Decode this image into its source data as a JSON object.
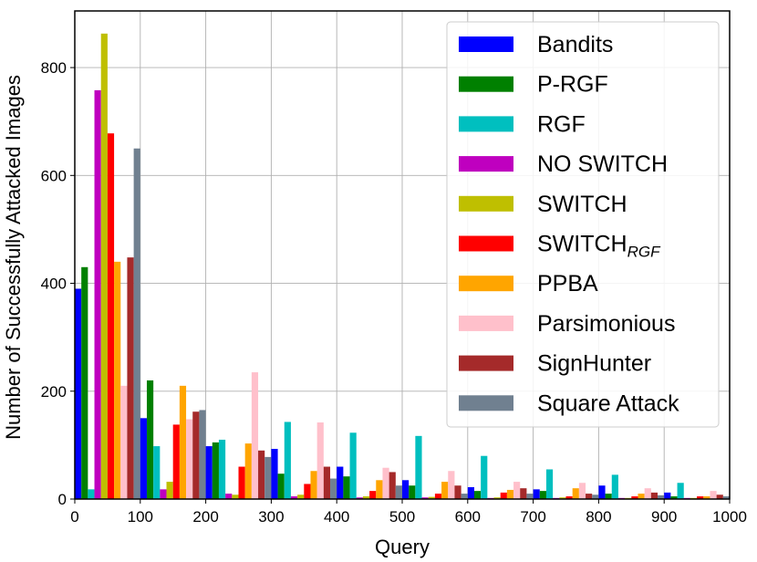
{
  "chart_data": {
    "type": "bar",
    "xlabel": "Query",
    "ylabel": "Number of Successfully Attacked Images",
    "xlim": [
      0,
      1000
    ],
    "ylim": [
      0,
      905
    ],
    "xticks": [
      0,
      100,
      200,
      300,
      400,
      500,
      600,
      700,
      800,
      900,
      1000
    ],
    "yticks": [
      0,
      200,
      400,
      600,
      800
    ],
    "grid": true,
    "legend_position": "top-right",
    "bin_starts": [
      0,
      100,
      200,
      300,
      400,
      500,
      600,
      700,
      800,
      900
    ],
    "series": [
      {
        "name": "Bandits",
        "name_sub": "",
        "color": "#0000ff",
        "values": [
          390,
          150,
          98,
          93,
          60,
          35,
          22,
          18,
          25,
          12
        ]
      },
      {
        "name": "P-RGF",
        "name_sub": "",
        "color": "#008000",
        "values": [
          430,
          220,
          105,
          47,
          42,
          25,
          15,
          15,
          10,
          5
        ]
      },
      {
        "name": "RGF",
        "name_sub": "",
        "color": "#00bfbf",
        "values": [
          18,
          98,
          110,
          143,
          123,
          117,
          80,
          55,
          45,
          30
        ]
      },
      {
        "name": "NO SWITCH",
        "name_sub": "",
        "color": "#bf00bf",
        "values": [
          758,
          18,
          10,
          5,
          3,
          3,
          2,
          2,
          2,
          2
        ]
      },
      {
        "name": "SWITCH",
        "name_sub": "",
        "color": "#bfbf00",
        "values": [
          863,
          32,
          8,
          8,
          5,
          4,
          3,
          3,
          2,
          2
        ]
      },
      {
        "name": "SWITCH",
        "name_sub": "RGF",
        "color": "#ff0000",
        "values": [
          678,
          138,
          60,
          28,
          15,
          10,
          12,
          5,
          5,
          5
        ]
      },
      {
        "name": "PPBA",
        "name_sub": "",
        "color": "#ffa500",
        "values": [
          440,
          210,
          103,
          52,
          35,
          32,
          17,
          20,
          10,
          5
        ]
      },
      {
        "name": "Parsimonious",
        "name_sub": "",
        "color": "#ffc0cb",
        "values": [
          210,
          148,
          235,
          142,
          58,
          52,
          32,
          30,
          20,
          15
        ]
      },
      {
        "name": "SignHunter",
        "name_sub": "",
        "color": "#a52a2a",
        "values": [
          448,
          162,
          90,
          60,
          50,
          25,
          20,
          10,
          12,
          8
        ]
      },
      {
        "name": "Square Attack",
        "name_sub": "",
        "color": "#708090",
        "values": [
          650,
          165,
          78,
          38,
          25,
          10,
          10,
          8,
          7,
          5
        ]
      }
    ]
  }
}
